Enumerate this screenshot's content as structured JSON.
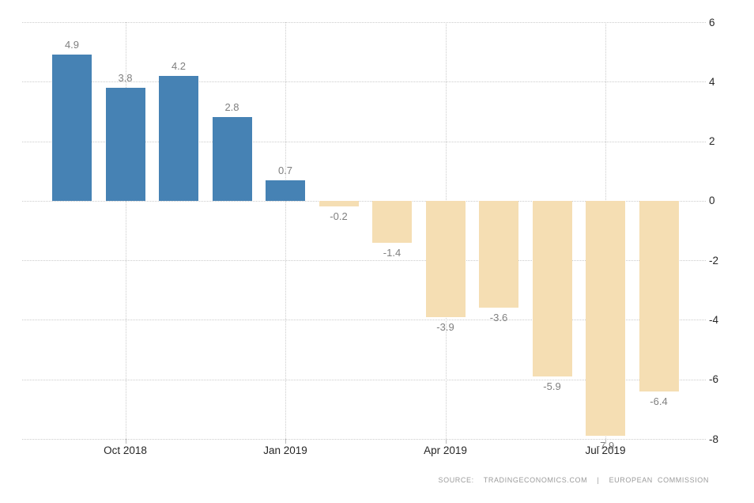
{
  "chart_data": {
    "type": "bar",
    "title": "",
    "xlabel": "",
    "ylabel": "",
    "values": [
      4.9,
      3.8,
      4.2,
      2.8,
      0.7,
      -0.2,
      -1.4,
      -3.9,
      -3.6,
      -5.9,
      -7.9,
      -6.4
    ],
    "value_labels": [
      "4.9",
      "3.8",
      "4.2",
      "2.8",
      "0.7",
      "-0.2",
      "-1.4",
      "-3.9",
      "-3.6",
      "-5.9",
      "-7.9",
      "-6.4"
    ],
    "x_ticks": [
      {
        "label": "Oct 2018",
        "bar_index": 1
      },
      {
        "label": "Jan 2019",
        "bar_index": 4
      },
      {
        "label": "Apr 2019",
        "bar_index": 7
      },
      {
        "label": "Jul 2019",
        "bar_index": 10
      }
    ],
    "y_ticks": [
      6,
      4,
      2,
      0,
      -2,
      -4,
      -6,
      -8
    ],
    "ylim": [
      -8,
      6
    ],
    "grid": "dotted",
    "legend": "none",
    "y_axis_side": "right",
    "colors": {
      "positive_bar": "#4682b4",
      "negative_bar": "#f5deb3",
      "gridline": "#cccccc",
      "value_label": "#7f7f7f",
      "axis_label": "#262626",
      "tick_mark": "#b9b9b9"
    }
  },
  "source": {
    "text": "SOURCE:  TRADINGECONOMICS.COM  |  EUROPEAN COMMISSION",
    "color": "#9b9b9b"
  }
}
